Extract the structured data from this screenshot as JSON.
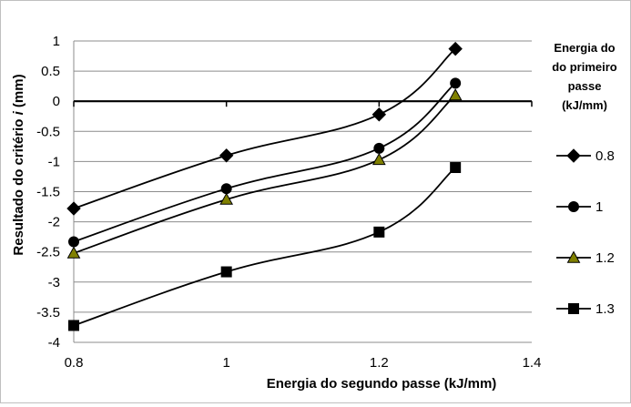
{
  "chart_data": {
    "type": "line",
    "smooth": true,
    "xlabel": "Energia do segundo passe (kJ/mm)",
    "ylabel_parts": [
      "Resultado do critério ",
      "i",
      " (mm)"
    ],
    "xlim": [
      0.8,
      1.4
    ],
    "ylim": [
      -4,
      1
    ],
    "xticks": [
      {
        "value": 0.8,
        "label": "0.8"
      },
      {
        "value": 1.0,
        "label": "1"
      },
      {
        "value": 1.2,
        "label": "1.2"
      },
      {
        "value": 1.4,
        "label": "1.4"
      }
    ],
    "yticks": [
      {
        "value": 1,
        "label": "1"
      },
      {
        "value": 0.5,
        "label": "0.5"
      },
      {
        "value": 0,
        "label": "0"
      },
      {
        "value": -0.5,
        "label": "-0.5"
      },
      {
        "value": -1,
        "label": "-1"
      },
      {
        "value": -1.5,
        "label": "-1.5"
      },
      {
        "value": -2,
        "label": "-2"
      },
      {
        "value": -2.5,
        "label": "-2.5"
      },
      {
        "value": -3,
        "label": "-3"
      },
      {
        "value": -3.5,
        "label": "-3.5"
      },
      {
        "value": -4,
        "label": "-4"
      }
    ],
    "grid": "horizontal",
    "zero_line": true,
    "legend_title": [
      "Energia do",
      "do primeiro",
      "passe",
      "(kJ/mm)"
    ],
    "legend_position": "right",
    "x": [
      0.8,
      1.0,
      1.2,
      1.3
    ],
    "series": [
      {
        "name": "0.8",
        "marker": "diamond",
        "marker_color": "#000000",
        "values": [
          -1.78,
          -0.9,
          -0.22,
          0.87
        ]
      },
      {
        "name": "1",
        "marker": "circle",
        "marker_color": "#000000",
        "values": [
          -2.33,
          -1.45,
          -0.78,
          0.3
        ]
      },
      {
        "name": "1.2",
        "marker": "triangle",
        "marker_color": "#808000",
        "values": [
          -2.52,
          -1.63,
          -0.97,
          0.1
        ]
      },
      {
        "name": "1.3",
        "marker": "square",
        "marker_color": "#000000",
        "values": [
          -3.72,
          -2.83,
          -2.17,
          -1.1
        ]
      }
    ]
  }
}
